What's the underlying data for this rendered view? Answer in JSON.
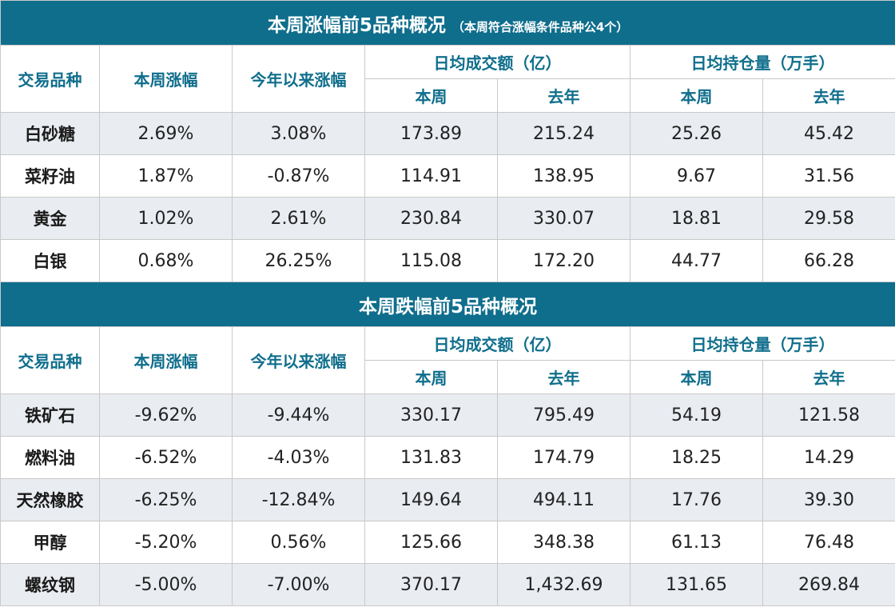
{
  "gainers": {
    "title": "本周涨幅前5品种概况",
    "note": "（本周符合涨幅条件品种公4个）",
    "headers": {
      "variety": "交易品种",
      "weekly_change": "本周涨幅",
      "ytd_change": "今年以来涨幅",
      "avg_volume": "日均成交额（亿）",
      "avg_open_interest": "日均持仓量（万手）",
      "this_week": "本周",
      "last_year": "去年"
    },
    "rows": [
      {
        "name": "白砂糖",
        "week": "2.69%",
        "ytd": "3.08%",
        "vol_week": "173.89",
        "vol_last_year": "215.24",
        "oi_week": "25.26",
        "oi_last_year": "45.42"
      },
      {
        "name": "菜籽油",
        "week": "1.87%",
        "ytd": "-0.87%",
        "vol_week": "114.91",
        "vol_last_year": "138.95",
        "oi_week": "9.67",
        "oi_last_year": "31.56"
      },
      {
        "name": "黄金",
        "week": "1.02%",
        "ytd": "2.61%",
        "vol_week": "230.84",
        "vol_last_year": "330.07",
        "oi_week": "18.81",
        "oi_last_year": "29.58"
      },
      {
        "name": "白银",
        "week": "0.68%",
        "ytd": "26.25%",
        "vol_week": "115.08",
        "vol_last_year": "172.20",
        "oi_week": "44.77",
        "oi_last_year": "66.28"
      }
    ]
  },
  "losers": {
    "title": "本周跌幅前5品种概况",
    "headers": {
      "variety": "交易品种",
      "weekly_change": "本周涨幅",
      "ytd_change": "今年以来涨幅",
      "avg_volume": "日均成交额（亿）",
      "avg_open_interest": "日均持仓量（万手）",
      "this_week": "本周",
      "last_year": "去年"
    },
    "rows": [
      {
        "name": "铁矿石",
        "week": "-9.62%",
        "ytd": "-9.44%",
        "vol_week": "330.17",
        "vol_last_year": "795.49",
        "oi_week": "54.19",
        "oi_last_year": "121.58"
      },
      {
        "name": "燃料油",
        "week": "-6.52%",
        "ytd": "-4.03%",
        "vol_week": "131.83",
        "vol_last_year": "174.79",
        "oi_week": "18.25",
        "oi_last_year": "14.29"
      },
      {
        "name": "天然橡胶",
        "week": "-6.25%",
        "ytd": "-12.84%",
        "vol_week": "149.64",
        "vol_last_year": "494.11",
        "oi_week": "17.76",
        "oi_last_year": "39.30"
      },
      {
        "name": "甲醇",
        "week": "-5.20%",
        "ytd": "0.56%",
        "vol_week": "125.66",
        "vol_last_year": "348.38",
        "oi_week": "61.13",
        "oi_last_year": "76.48"
      },
      {
        "name": "螺纹钢",
        "week": "-5.00%",
        "ytd": "-7.00%",
        "vol_week": "370.17",
        "vol_last_year": "1,432.69",
        "oi_week": "131.65",
        "oi_last_year": "269.84"
      }
    ]
  },
  "colors": {
    "banner": "#0f6e8c",
    "header_text": "#0f6e8c",
    "row_shade": "#e9ecf1"
  }
}
